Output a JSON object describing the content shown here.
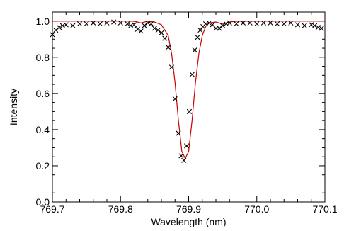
{
  "chart_data": {
    "type": "line",
    "xlabel": "Wavelength (nm)",
    "ylabel": "Intensity",
    "xlim": [
      769.7,
      770.1
    ],
    "ylim": [
      0.0,
      1.05
    ],
    "x_ticks": [
      769.7,
      769.8,
      769.9,
      770.0,
      770.1
    ],
    "x_tick_labels": [
      "769.7",
      "769.8",
      "769.9",
      "770.0",
      "770.1"
    ],
    "y_ticks": [
      0.0,
      0.2,
      0.4,
      0.6,
      0.8,
      1.0
    ],
    "y_tick_labels": [
      "0.0",
      "0.2",
      "0.4",
      "0.6",
      "0.8",
      "1.0"
    ],
    "grid": false,
    "series": [
      {
        "kind": "line",
        "color": "#cc0000",
        "x": [
          769.7,
          769.74,
          769.78,
          769.81,
          769.82,
          769.825,
          769.83,
          769.835,
          769.84,
          769.85,
          769.86,
          769.87,
          769.875,
          769.88,
          769.885,
          769.89,
          769.895,
          769.9,
          769.905,
          769.91,
          769.915,
          769.92,
          769.925,
          769.93,
          769.94,
          769.945,
          769.95,
          769.955,
          769.96,
          769.97,
          770.0,
          770.05,
          770.1
        ],
        "y": [
          1.0,
          1.0,
          1.0,
          1.0,
          0.999,
          0.995,
          0.99,
          0.995,
          0.999,
          0.995,
          0.98,
          0.92,
          0.82,
          0.66,
          0.45,
          0.28,
          0.24,
          0.28,
          0.45,
          0.66,
          0.82,
          0.92,
          0.97,
          0.99,
          0.995,
          0.99,
          0.983,
          0.99,
          0.995,
          0.999,
          1.0,
          1.0,
          1.0
        ]
      },
      {
        "kind": "scatter",
        "marker": "x",
        "color": "#000000",
        "x": [
          769.7,
          769.705,
          769.71,
          769.715,
          769.72,
          769.73,
          769.74,
          769.75,
          769.76,
          769.77,
          769.78,
          769.79,
          769.8,
          769.81,
          769.815,
          769.82,
          769.825,
          769.83,
          769.835,
          769.84,
          769.845,
          769.85,
          769.855,
          769.86,
          769.865,
          769.87,
          769.875,
          769.88,
          769.885,
          769.889,
          769.893,
          769.897,
          769.901,
          769.905,
          769.909,
          769.913,
          769.917,
          769.921,
          769.925,
          769.93,
          769.935,
          769.94,
          769.945,
          769.95,
          769.955,
          769.96,
          769.97,
          769.98,
          769.99,
          770.0,
          770.01,
          770.02,
          770.03,
          770.04,
          770.05,
          770.06,
          770.07,
          770.08,
          770.085,
          770.09,
          770.095
        ],
        "y": [
          0.925,
          0.95,
          0.965,
          0.975,
          0.98,
          0.975,
          0.985,
          0.985,
          0.99,
          0.985,
          0.99,
          0.995,
          0.99,
          0.985,
          0.975,
          0.98,
          0.955,
          0.945,
          0.975,
          0.99,
          0.985,
          0.96,
          0.95,
          0.935,
          0.905,
          0.855,
          0.745,
          0.57,
          0.38,
          0.255,
          0.23,
          0.31,
          0.5,
          0.705,
          0.84,
          0.91,
          0.95,
          0.97,
          0.985,
          0.99,
          0.98,
          0.96,
          0.96,
          0.975,
          0.985,
          0.99,
          0.985,
          0.99,
          0.99,
          0.985,
          0.99,
          0.99,
          0.985,
          0.985,
          0.99,
          0.98,
          0.975,
          0.98,
          0.975,
          0.965,
          0.96
        ]
      }
    ]
  }
}
